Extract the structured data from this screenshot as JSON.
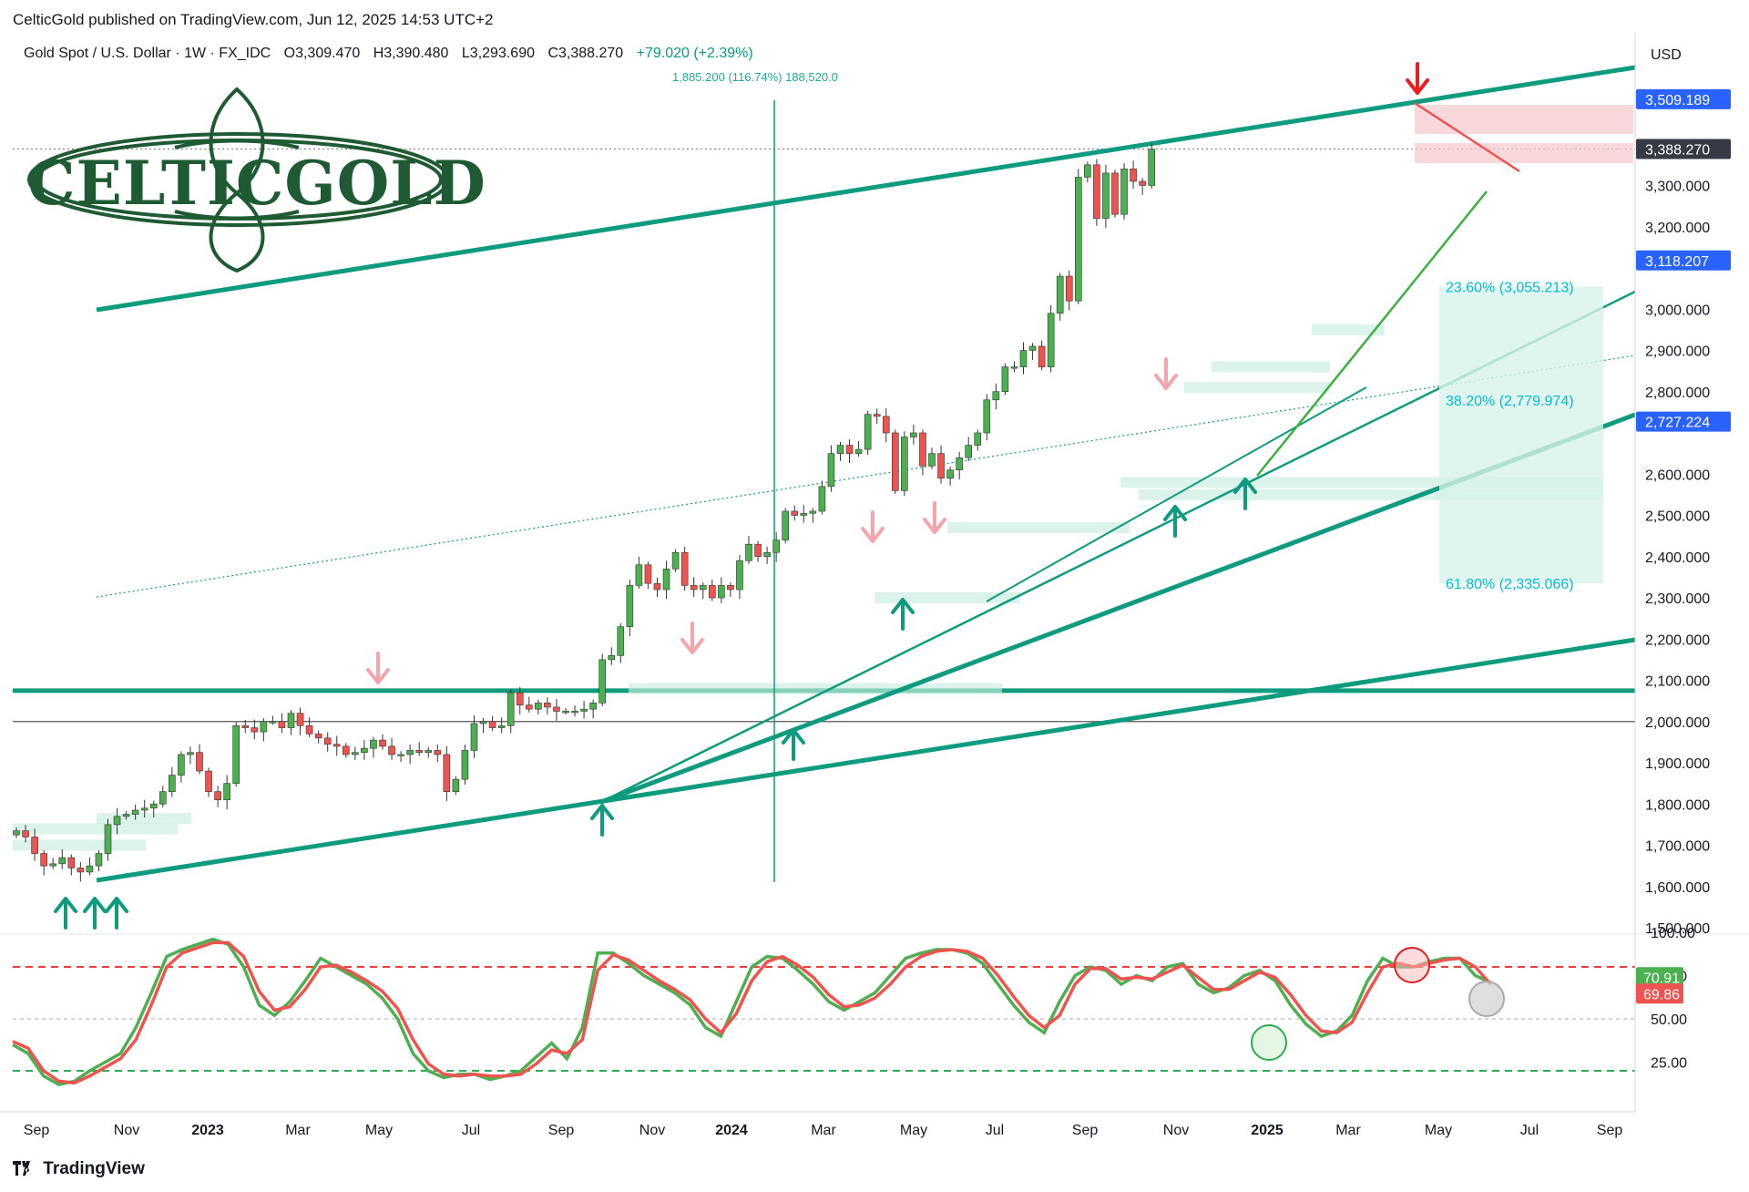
{
  "header": {
    "published": "CelticGold published on TradingView.com, Jun 12, 2025 14:53 UTC+2"
  },
  "symbol_bar": {
    "name": "Gold Spot / U.S. Dollar · 1W · FX_IDC",
    "open": "O3,309.470",
    "high": "H3,390.480",
    "low": "L3,293.690",
    "close": "C3,388.270",
    "change": "+79.020 (+2.39%)"
  },
  "measure_label": "1,885.200 (116.74%) 188,520.0",
  "currency": "USD",
  "logo": {
    "text": "CELTICGOLD"
  },
  "brand": {
    "text": "TradingView",
    "icon": "tradingview-logo-icon"
  },
  "colors": {
    "up": "#4caf50",
    "down": "#ef5350",
    "trend": "#0f9b7d",
    "stoch_k": "#4caf50",
    "stoch_d": "#ef5350",
    "badge_blue": "#2962ff",
    "badge_dark": "#363a45"
  },
  "chart_data": [
    {
      "type": "candlestick",
      "title": "Gold Spot / U.S. Dollar · 1W · FX_IDC",
      "x_tick_labels": [
        "Sep",
        "Nov",
        "2023",
        "Mar",
        "May",
        "Jul",
        "Sep",
        "Nov",
        "2024",
        "Mar",
        "May",
        "Jul",
        "Sep",
        "Nov",
        "2025",
        "Mar",
        "May",
        "Jul",
        "Sep"
      ],
      "y_tick_labels": [
        "3,300.000",
        "3,200.000",
        "3,000.000",
        "2,900.000",
        "2,800.000",
        "2,600.000",
        "2,500.000",
        "2,400.000",
        "2,300.000",
        "2,200.000",
        "2,100.000",
        "2,000.000",
        "1,900.000",
        "1,800.000",
        "1,700.000",
        "1,600.000",
        "1,500.000"
      ],
      "ylim": [
        1500,
        3560
      ],
      "price_badges": [
        {
          "text": "3,509.189",
          "value": 3509.189,
          "style": "blue"
        },
        {
          "text": "3,388.270",
          "value": 3388.27,
          "style": "dark"
        },
        {
          "text": "3,118.207",
          "value": 3118.207,
          "style": "blue"
        },
        {
          "text": "2,727.224",
          "value": 2727.224,
          "style": "blue"
        }
      ],
      "fibonacci": [
        {
          "text": "23.60% (3,055.213)",
          "value": 3055.213
        },
        {
          "text": "38.20% (2,779.974)",
          "value": 2779.974
        },
        {
          "text": "61.80% (2,335.066)",
          "value": 2335.066
        }
      ],
      "horizontal_levels": [
        2075,
        2000
      ],
      "close_series": [
        1735,
        1720,
        1680,
        1650,
        1655,
        1670,
        1645,
        1635,
        1650,
        1680,
        1750,
        1770,
        1775,
        1785,
        1790,
        1800,
        1830,
        1870,
        1920,
        1925,
        1880,
        1830,
        1810,
        1850,
        1990,
        1985,
        1975,
        2000,
        2000,
        1985,
        2020,
        1990,
        1970,
        1960,
        1945,
        1940,
        1920,
        1925,
        1935,
        1955,
        1940,
        1920,
        1920,
        1930,
        1925,
        1930,
        1920,
        1830,
        1860,
        1930,
        1995,
        2000,
        1985,
        1990,
        2070,
        2040,
        2030,
        2045,
        2035,
        2025,
        2025,
        2025,
        2030,
        2045,
        2150,
        2160,
        2230,
        2330,
        2380,
        2335,
        2320,
        2370,
        2410,
        2330,
        2320,
        2330,
        2300,
        2330,
        2320,
        2390,
        2430,
        2400,
        2410,
        2440,
        2510,
        2500,
        2505,
        2510,
        2570,
        2650,
        2670,
        2650,
        2660,
        2745,
        2740,
        2700,
        2560,
        2690,
        2700,
        2620,
        2650,
        2590,
        2610,
        2640,
        2670,
        2700,
        2780,
        2800,
        2860,
        2860,
        2900,
        2910,
        2860,
        2990,
        3080,
        3020,
        3320,
        3350,
        3220,
        3330,
        3230,
        3340,
        3310,
        3300,
        3388
      ]
    },
    {
      "type": "line",
      "title": "",
      "y_tick_labels": [
        "100.00",
        "75.00",
        "50.00",
        "25.00"
      ],
      "ylim": [
        0,
        105
      ],
      "reference_lines": [
        80,
        50,
        20
      ],
      "value_badges": [
        {
          "text": "70.91",
          "value": 70.91,
          "series": "green"
        },
        {
          "text": "69.86",
          "value": 69.86,
          "series": "red"
        }
      ],
      "series": [
        {
          "values": [
            35,
            30,
            17,
            12,
            14,
            20,
            25,
            30,
            45,
            65,
            86,
            90,
            93,
            96,
            93,
            80,
            58,
            52,
            60,
            72,
            85,
            80,
            75,
            70,
            62,
            50,
            30,
            20,
            16,
            18,
            18,
            15,
            17,
            20,
            28,
            36,
            27,
            45,
            88,
            88,
            82,
            75,
            70,
            65,
            58,
            45,
            40,
            60,
            80,
            86,
            85,
            78,
            70,
            60,
            55,
            60,
            65,
            75,
            85,
            88,
            90,
            90,
            88,
            82,
            70,
            58,
            48,
            42,
            60,
            75,
            80,
            78,
            70,
            75,
            72,
            80,
            82,
            70,
            65,
            68,
            75,
            78,
            72,
            58,
            47,
            40,
            43,
            52,
            72,
            85,
            80,
            80,
            83,
            85,
            85,
            75,
            71
          ]
        },
        {
          "values": [
            37,
            33,
            20,
            14,
            13,
            17,
            22,
            27,
            38,
            58,
            80,
            88,
            91,
            94,
            94,
            86,
            66,
            55,
            57,
            67,
            80,
            81,
            77,
            72,
            66,
            56,
            38,
            24,
            18,
            17,
            18,
            17,
            17,
            18,
            24,
            32,
            30,
            38,
            78,
            87,
            84,
            78,
            72,
            67,
            61,
            50,
            42,
            53,
            72,
            83,
            86,
            81,
            74,
            64,
            57,
            58,
            62,
            70,
            80,
            86,
            89,
            90,
            89,
            85,
            75,
            63,
            52,
            45,
            52,
            70,
            79,
            79,
            73,
            74,
            73,
            77,
            81,
            74,
            67,
            67,
            72,
            77,
            74,
            64,
            52,
            43,
            42,
            48,
            65,
            80,
            82,
            80,
            82,
            84,
            85,
            80,
            70
          ]
        }
      ]
    }
  ]
}
